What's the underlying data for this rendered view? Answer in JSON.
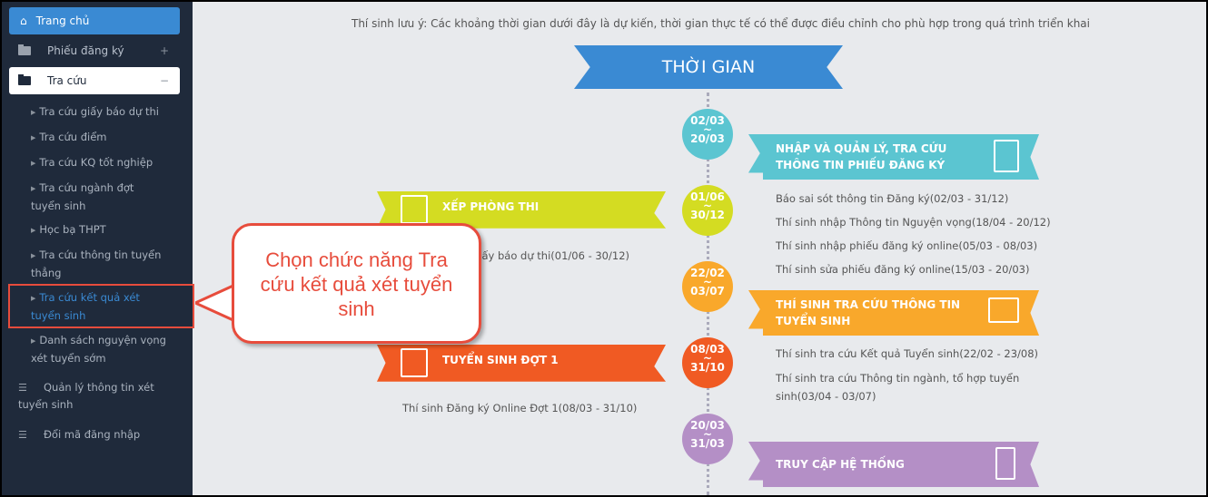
{
  "sidebar": {
    "home": "Trang chủ",
    "registration": "Phiếu đăng ký",
    "lookup": "Tra cứu",
    "lookup_items": [
      "Tra cứu giấy báo dự thi",
      "Tra cứu điểm",
      "Tra cứu KQ tốt nghiệp",
      "Tra cứu ngành đợt tuyển sinh",
      "Học bạ THPT",
      "Tra cứu thông tin tuyển thẳng",
      "Tra cứu kết quả xét tuyển sinh",
      "Danh sách nguyện vọng xét tuyển sớm"
    ],
    "manage": "Quản lý thông tin xét tuyển sinh",
    "change_code": "Đổi mã đăng nhập",
    "expand": "+",
    "collapse": "−"
  },
  "main": {
    "note": "Thí sinh lưu ý: Các khoảng thời gian dưới đây là dự kiến, thời gian thực tế có thể được điều chỉnh cho phù hợp trong quá trình triển khai",
    "title": "THỜI GIAN",
    "milestones": [
      {
        "from": "02/03",
        "to": "20/03",
        "color": "#5bc5d1"
      },
      {
        "from": "01/06",
        "to": "30/12",
        "color": "#d4dc22"
      },
      {
        "from": "22/02",
        "to": "03/07",
        "color": "#f9a82b"
      },
      {
        "from": "08/03",
        "to": "31/10",
        "color": "#f05a23"
      },
      {
        "from": "20/03",
        "to": "31/03",
        "color": "#b48fc6"
      }
    ],
    "sep": "~",
    "ribbons": {
      "r1": "NHẬP VÀ QUẢN LÝ, TRA CỨU THÔNG TIN PHIẾU ĐĂNG KÝ",
      "l1": "XẾP PHÒNG THI",
      "r2": "THÍ SINH TRA CỨU THÔNG TIN TUYỂN SINH",
      "l2": "TUYỂN SINH ĐỢT 1",
      "r3": "TRUY CẬP HỆ THỐNG"
    },
    "items": {
      "r1": [
        "Báo sai sót thông tin Đăng ký(02/03 - 31/12)",
        "Thí sinh nhập Thông tin Nguyện vọng(18/04 - 20/12)",
        "Thí sinh nhập phiếu đăng ký online(05/03 - 08/03)",
        "Thí sinh sửa phiếu đăng ký online(15/03 - 20/03)"
      ],
      "l1": [
        "Giấy báo dự thi(01/06 - 30/12)"
      ],
      "r2": [
        "Thí sinh tra cứu Kết quả Tuyển sinh(22/02 - 23/08)",
        "Thí sinh tra cứu Thông tin ngành, tổ hợp tuyển sinh(03/04 - 03/07)"
      ],
      "l2": [
        "Thí sinh Đăng ký Online Đợt 1(08/03 - 31/10)"
      ]
    }
  },
  "callout": "Chọn chức năng Tra cứu kết quả xét tuyển sinh",
  "colors": {
    "accent": "#3a8ad3",
    "sidebar": "#1f2a3b",
    "highlight": "#e74c3c"
  }
}
